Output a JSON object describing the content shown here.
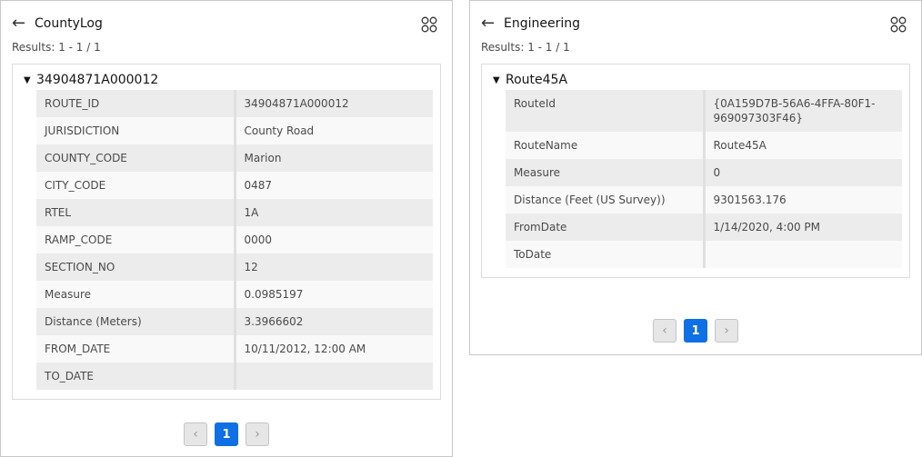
{
  "panels": [
    {
      "title": "CountyLog",
      "results": "Results: 1 - 1 / 1",
      "feature": "34904871A000012",
      "rows": [
        [
          "ROUTE_ID",
          "34904871A000012"
        ],
        [
          "JURISDICTION",
          "County Road"
        ],
        [
          "COUNTY_CODE",
          "Marion"
        ],
        [
          "CITY_CODE",
          "0487"
        ],
        [
          "RTEL",
          "1A"
        ],
        [
          "RAMP_CODE",
          "0000"
        ],
        [
          "SECTION_NO",
          "12"
        ],
        [
          "Measure",
          "0.0985197"
        ],
        [
          "Distance (Meters)",
          "3.3966602"
        ],
        [
          "FROM_DATE",
          "10/11/2012, 12:00 AM"
        ],
        [
          "TO_DATE",
          ""
        ]
      ],
      "page": "1"
    },
    {
      "title": "Engineering",
      "results": "Results: 1 - 1 / 1",
      "feature": "Route45A",
      "rows": [
        [
          "RouteId",
          "{0A159D7B-56A6-4FFA-80F1-969097303F46}"
        ],
        [
          "RouteName",
          "Route45A"
        ],
        [
          "Measure",
          "0"
        ],
        [
          "Distance (Feet (US Survey))",
          "9301563.176"
        ],
        [
          "FromDate",
          "1/14/2020, 4:00 PM"
        ],
        [
          "ToDate",
          ""
        ]
      ],
      "page": "1"
    }
  ],
  "icons": {
    "back": "arrow-left-icon",
    "menu": "grid-icon",
    "expand": "triangle-down-icon",
    "prev": "chevron-left-icon",
    "next": "chevron-right-icon"
  },
  "colors": {
    "accent": "#0f6fe5"
  }
}
